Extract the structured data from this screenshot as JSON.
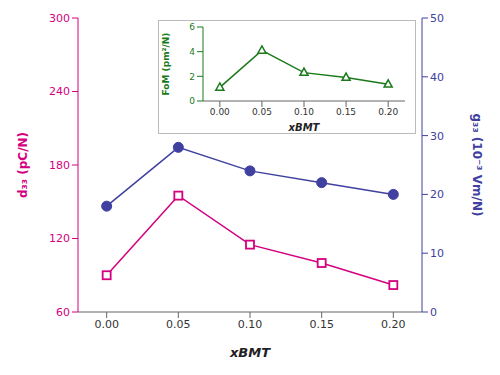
{
  "chart_data": [
    {
      "type": "line",
      "x": [
        0.0,
        0.05,
        0.1,
        0.15,
        0.2
      ],
      "xlabel": "xBMT",
      "ylabel": "d₃₃ (pC/N)",
      "y2label": "g₃₃ (10⁻³ Vm/N)",
      "xlim": [
        -0.02,
        0.22
      ],
      "xticks": [
        {
          "value": 0,
          "label": "0.00"
        },
        {
          "value": 0.05,
          "label": "0.05"
        },
        {
          "value": 0.1,
          "label": "0.10"
        },
        {
          "value": 0.15,
          "label": "0.15"
        },
        {
          "value": 0.2,
          "label": "0.20"
        }
      ],
      "ylim": [
        60,
        300
      ],
      "yticks": [
        60,
        120,
        180,
        240,
        300
      ],
      "y2lim": [
        0,
        50
      ],
      "y2ticks": [
        0,
        10,
        20,
        30,
        40,
        50
      ],
      "series": [
        {
          "color": "#d4007f",
          "marker": "square",
          "values": [
            90,
            155,
            115,
            100,
            82
          ]
        },
        {
          "color": "#4040a0",
          "marker": "circle",
          "axis": "y2",
          "values": [
            18,
            28,
            24,
            22,
            20
          ]
        }
      ]
    },
    {
      "type": "line",
      "x": [
        0.0,
        0.05,
        0.1,
        0.15,
        0.2
      ],
      "xlabel": "xBMT",
      "ylabel": "FoM (pm²/N)",
      "xlim": [
        -0.02,
        0.22
      ],
      "xticks": [
        {
          "value": 0,
          "label": "0.00"
        },
        {
          "value": 0.05,
          "label": "0.05"
        },
        {
          "value": 0.1,
          "label": "0.10"
        },
        {
          "value": 0.15,
          "label": "0.15"
        },
        {
          "value": 0.2,
          "label": "0.20"
        }
      ],
      "ylim": [
        0,
        6
      ],
      "yticks": [
        0,
        2,
        4,
        6
      ],
      "series": [
        {
          "color": "#1a7a1a",
          "marker": "triangle",
          "values": [
            1.1,
            4.1,
            2.3,
            1.9,
            1.35
          ]
        }
      ]
    }
  ]
}
